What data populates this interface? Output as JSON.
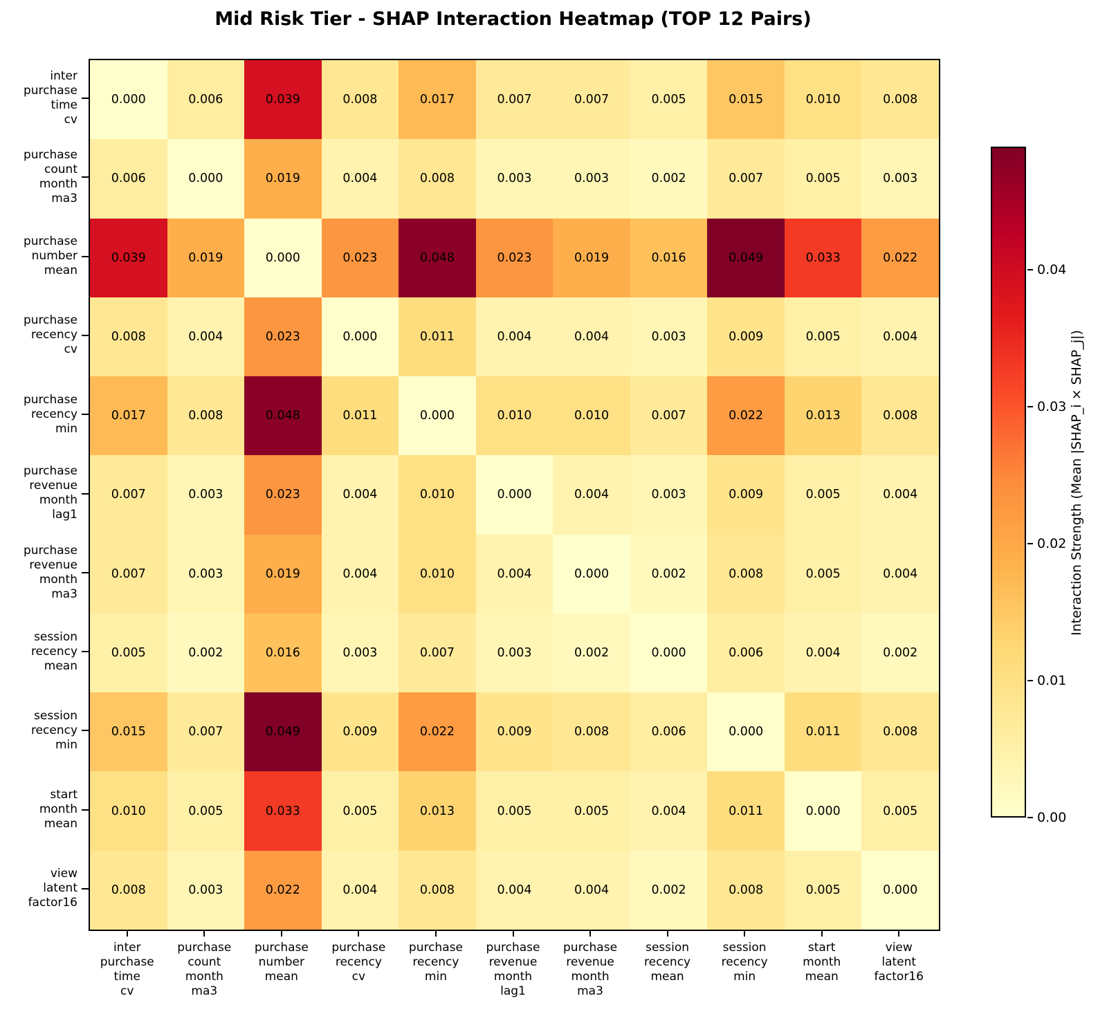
{
  "title": "Mid Risk Tier - SHAP Interaction Heatmap (TOP 12 Pairs)",
  "chart_data": {
    "type": "heatmap",
    "features": [
      "inter purchase time cv",
      "purchase count month ma3",
      "purchase number mean",
      "purchase recency cv",
      "purchase recency min",
      "purchase revenue month lag1",
      "purchase revenue month ma3",
      "session recency mean",
      "session recency min",
      "start month mean",
      "view latent factor16"
    ],
    "matrix": [
      [
        0.0,
        0.006,
        0.039,
        0.008,
        0.017,
        0.007,
        0.007,
        0.005,
        0.015,
        0.01,
        0.008
      ],
      [
        0.006,
        0.0,
        0.019,
        0.004,
        0.008,
        0.003,
        0.003,
        0.002,
        0.007,
        0.005,
        0.003
      ],
      [
        0.039,
        0.019,
        0.0,
        0.023,
        0.048,
        0.023,
        0.019,
        0.016,
        0.049,
        0.033,
        0.022
      ],
      [
        0.008,
        0.004,
        0.023,
        0.0,
        0.011,
        0.004,
        0.004,
        0.003,
        0.009,
        0.005,
        0.004
      ],
      [
        0.017,
        0.008,
        0.048,
        0.011,
        0.0,
        0.01,
        0.01,
        0.007,
        0.022,
        0.013,
        0.008
      ],
      [
        0.007,
        0.003,
        0.023,
        0.004,
        0.01,
        0.0,
        0.004,
        0.003,
        0.009,
        0.005,
        0.004
      ],
      [
        0.007,
        0.003,
        0.019,
        0.004,
        0.01,
        0.004,
        0.0,
        0.002,
        0.008,
        0.005,
        0.004
      ],
      [
        0.005,
        0.002,
        0.016,
        0.003,
        0.007,
        0.003,
        0.002,
        0.0,
        0.006,
        0.004,
        0.002
      ],
      [
        0.015,
        0.007,
        0.049,
        0.009,
        0.022,
        0.009,
        0.008,
        0.006,
        0.0,
        0.011,
        0.008
      ],
      [
        0.01,
        0.005,
        0.033,
        0.005,
        0.013,
        0.005,
        0.005,
        0.004,
        0.011,
        0.0,
        0.005
      ],
      [
        0.008,
        0.003,
        0.022,
        0.004,
        0.008,
        0.004,
        0.004,
        0.002,
        0.008,
        0.005,
        0.0
      ]
    ],
    "value_format_decimals": 3,
    "colormap": {
      "name": "YlOrRd",
      "stops": [
        "#ffffcc",
        "#ffeda0",
        "#fed976",
        "#feb24c",
        "#fd8d3c",
        "#fc4e2a",
        "#e31a1c",
        "#bd0026",
        "#800026"
      ]
    },
    "colorbar": {
      "label": "Interaction Strength (Mean |SHAP_i × SHAP_j|)",
      "ticks": [
        "0.00",
        "0.01",
        "0.02",
        "0.03",
        "0.04"
      ],
      "tick_values": [
        0.0,
        0.01,
        0.02,
        0.03,
        0.04
      ],
      "vmin": 0.0,
      "vmax": 0.049
    },
    "text_color": "#000000",
    "grid": false,
    "legend_position": "right-colorbar"
  }
}
